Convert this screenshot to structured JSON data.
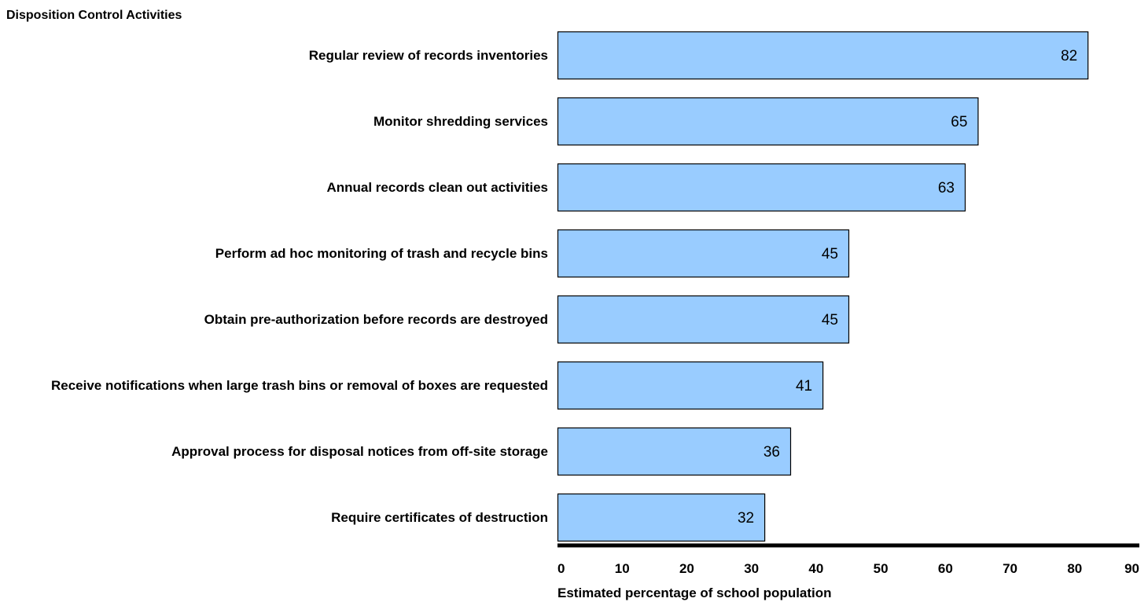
{
  "chart_data": {
    "type": "bar",
    "orientation": "horizontal",
    "title": "Disposition Control Activities",
    "xlabel": "Estimated percentage of school population",
    "ylabel": "",
    "categories": [
      "Regular review of records inventories",
      "Monitor shredding services",
      "Annual records clean out activities",
      "Perform ad hoc monitoring of trash and recycle bins",
      "Obtain pre-authorization before records are destroyed",
      "Receive notifications when large trash bins or removal of boxes are requested",
      "Approval process for disposal notices from off-site storage",
      "Require certificates of destruction"
    ],
    "values": [
      82,
      65,
      63,
      45,
      45,
      41,
      36,
      32
    ],
    "xlim": [
      0,
      90
    ],
    "xticks": [
      "0",
      "10",
      "20",
      "30",
      "40",
      "50",
      "60",
      "70",
      "80",
      "90"
    ],
    "grid": false,
    "legend": "none",
    "bar_color": "#99ccff",
    "bar_edge_color": "#000000"
  }
}
